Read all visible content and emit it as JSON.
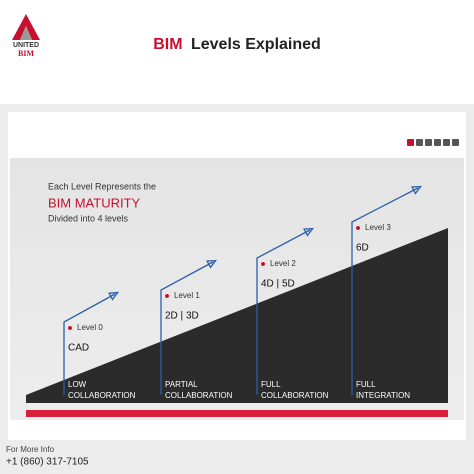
{
  "header": {
    "logo": [
      "UNITED",
      "BIM"
    ],
    "title_highlight": "BIM",
    "title_rest": "Levels Explained"
  },
  "intro": {
    "line1": "Each Level Represents the",
    "highlight": "BIM MATURITY",
    "line2": "Divided into 4 levels"
  },
  "levels": [
    {
      "label": "Level 0",
      "tech": "CAD",
      "stage": [
        "LOW",
        "COLLABORATION"
      ]
    },
    {
      "label": "Level 1",
      "tech": "2D | 3D",
      "stage": [
        "PARTIAL",
        "COLLABORATION"
      ]
    },
    {
      "label": "Level 2",
      "tech": "4D | 5D",
      "stage": [
        "FULL",
        "COLLABORATION"
      ]
    },
    {
      "label": "Level 3",
      "tech": "6D",
      "stage": [
        "FULL",
        "INTEGRATION"
      ]
    }
  ],
  "footer": {
    "caption": "For More Info",
    "phone": "+1 (860) 317-7105"
  }
}
